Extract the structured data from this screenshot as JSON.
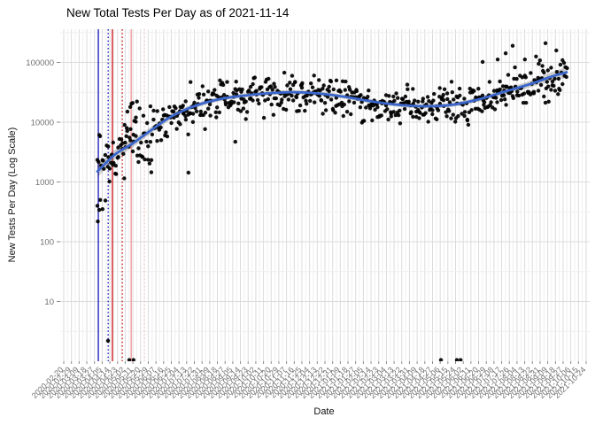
{
  "chart_data": {
    "type": "scatter",
    "title": "New Total Tests Per Day as of 2021-11-14",
    "xlabel": "Date",
    "ylabel": "New Tests Per Day (Log Scale)",
    "y_scale": "log10",
    "y_ticks": [
      10,
      100,
      1000,
      10000,
      100000
    ],
    "y_range": [
      1,
      366000
    ],
    "x_axis": {
      "label_start": "2020-02-20",
      "label_interval_days": 9,
      "label_count": 69,
      "format": "YYYY-MM-DD",
      "angle_deg": 45
    },
    "grid": {
      "major": "#dbdbdb",
      "minor": "#efefef"
    },
    "tick_color": "#707070",
    "axis_tick_mark_color": "#8a8a8a",
    "points": {
      "n": 618,
      "seed": 7,
      "color": "#000000",
      "radius": 2.2,
      "noise_sd_log10": 0.16,
      "early_noise_sd_log10": 0.34,
      "mid_early_noise_sd_log10": 0.24,
      "weekly_dip_log10": 0.1
    },
    "smooth": {
      "color": "#3a66cc",
      "width": 2.8,
      "ribbon_color": "rgba(0,0,0,0.18)",
      "knots": [
        [
          0.0,
          1500
        ],
        [
          0.038,
          2900
        ],
        [
          0.075,
          4400
        ],
        [
          0.113,
          7200
        ],
        [
          0.151,
          11600
        ],
        [
          0.189,
          16400
        ],
        [
          0.226,
          20800
        ],
        [
          0.264,
          24600
        ],
        [
          0.302,
          27300
        ],
        [
          0.358,
          30200
        ],
        [
          0.415,
          31800
        ],
        [
          0.472,
          30200
        ],
        [
          0.528,
          26500
        ],
        [
          0.585,
          22300
        ],
        [
          0.642,
          19500
        ],
        [
          0.698,
          18500
        ],
        [
          0.755,
          19500
        ],
        [
          0.811,
          23900
        ],
        [
          0.868,
          32400
        ],
        [
          0.925,
          44100
        ],
        [
          0.962,
          56000
        ],
        [
          1.0,
          68500
        ]
      ],
      "ribbon_halfwidth_log10": [
        0.1,
        0.08,
        0.065,
        0.055,
        0.048,
        0.042,
        0.038,
        0.036,
        0.035,
        0.034,
        0.034,
        0.034,
        0.034,
        0.034,
        0.034,
        0.034,
        0.035,
        0.038,
        0.045,
        0.055,
        0.07,
        0.09
      ]
    },
    "vlines": [
      {
        "x_frac": 0.002,
        "color": "#2222bb",
        "style": "solid"
      },
      {
        "x_frac": 0.023,
        "color": "#2222bb",
        "style": "dotted"
      },
      {
        "x_frac": 0.032,
        "color": "#cc2222",
        "style": "solid"
      },
      {
        "x_frac": 0.053,
        "color": "#cc2222",
        "style": "dotted"
      },
      {
        "x_frac": 0.072,
        "color": "#f29b9b",
        "style": "solid"
      },
      {
        "x_frac": 0.1,
        "color": "#f5c6c6",
        "style": "dotted"
      }
    ],
    "outliers_high": [
      [
        0.821,
        102000
      ],
      [
        0.853,
        112000
      ],
      [
        0.87,
        142000
      ],
      [
        0.885,
        190000
      ],
      [
        0.911,
        112000
      ],
      [
        0.943,
        108000
      ],
      [
        0.955,
        210000
      ],
      [
        0.058,
        9000
      ],
      [
        0.064,
        15000
      ],
      [
        0.07,
        18000
      ],
      [
        0.075,
        21000
      ],
      [
        0.082,
        12000
      ],
      [
        0.09,
        17000
      ]
    ],
    "outliers_low": [
      [
        0.0226,
        2.2
      ],
      [
        0.068,
        1.05
      ],
      [
        0.077,
        1.05
      ],
      [
        0.115,
        1450
      ],
      [
        0.194,
        1430
      ],
      [
        0.294,
        4700
      ],
      [
        0.732,
        1.05
      ],
      [
        0.766,
        1.05
      ],
      [
        0.774,
        1.05
      ],
      [
        0.0,
        400
      ],
      [
        0.004,
        340
      ],
      [
        0.006,
        500
      ]
    ]
  }
}
